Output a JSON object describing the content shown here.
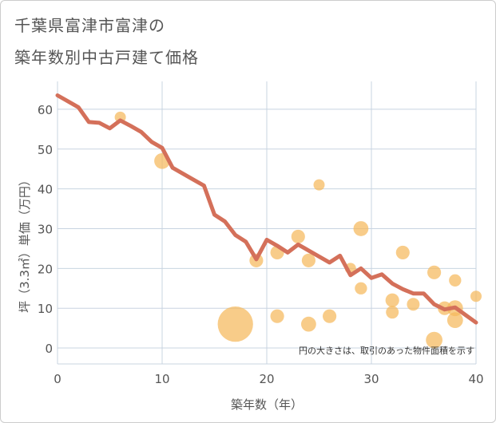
{
  "header": {
    "title_line1": "千葉県富津市富津の",
    "title_line2": "築年数別中古戸建て価格"
  },
  "chart_data": {
    "type": "scatter+line",
    "xlabel": "築年数（年）",
    "ylabel": "坪（3.3㎡）単価（万円）",
    "xlim": [
      0,
      40
    ],
    "ylim": [
      -4,
      67
    ],
    "xticks": [
      0,
      10,
      20,
      30,
      40
    ],
    "yticks": [
      0,
      10,
      20,
      30,
      40,
      50,
      60
    ],
    "grid": true,
    "note": "円の大きさは、取引のあった物件面積を示す",
    "colors": {
      "line": "#d4705a",
      "bubble": "#f5b95c",
      "grid": "#c8d4e0"
    },
    "scatter": [
      {
        "x": 6,
        "y": 58,
        "size": 1
      },
      {
        "x": 10,
        "y": 47,
        "size": 2
      },
      {
        "x": 17,
        "y": 6,
        "size": 10
      },
      {
        "x": 19,
        "y": 22,
        "size": 1.5
      },
      {
        "x": 21,
        "y": 24,
        "size": 1.5
      },
      {
        "x": 21,
        "y": 8,
        "size": 1.5
      },
      {
        "x": 23,
        "y": 28,
        "size": 1.5
      },
      {
        "x": 24,
        "y": 22,
        "size": 1.5
      },
      {
        "x": 24,
        "y": 6,
        "size": 1.8
      },
      {
        "x": 25,
        "y": 41,
        "size": 1
      },
      {
        "x": 26,
        "y": 8,
        "size": 1.5
      },
      {
        "x": 28,
        "y": 20,
        "size": 1
      },
      {
        "x": 29,
        "y": 30,
        "size": 1.8
      },
      {
        "x": 29,
        "y": 15,
        "size": 1.2
      },
      {
        "x": 32,
        "y": 12,
        "size": 1.5
      },
      {
        "x": 32,
        "y": 9,
        "size": 1.3
      },
      {
        "x": 33,
        "y": 24,
        "size": 1.5
      },
      {
        "x": 34,
        "y": 11,
        "size": 1.3
      },
      {
        "x": 36,
        "y": 19,
        "size": 1.5
      },
      {
        "x": 36,
        "y": 2,
        "size": 2.2
      },
      {
        "x": 37,
        "y": 10,
        "size": 1.5
      },
      {
        "x": 38,
        "y": 17,
        "size": 1.2
      },
      {
        "x": 38,
        "y": 10,
        "size": 2
      },
      {
        "x": 38,
        "y": 7,
        "size": 2
      },
      {
        "x": 40,
        "y": 13,
        "size": 1
      }
    ],
    "line": {
      "x": [
        0,
        1,
        2,
        3,
        4,
        5,
        6,
        7,
        8,
        9,
        10,
        11,
        12,
        13,
        14,
        15,
        16,
        17,
        18,
        19,
        20,
        21,
        22,
        23,
        24,
        25,
        26,
        27,
        28,
        29,
        30,
        31,
        32,
        33,
        34,
        35,
        36,
        37,
        38,
        39,
        40
      ],
      "y": [
        63.5,
        62,
        60.5,
        56.8,
        56.6,
        55.2,
        57.2,
        55.8,
        54.3,
        51.8,
        50.3,
        45.3,
        43.8,
        42.3,
        40.8,
        33.5,
        31.8,
        28.4,
        26.7,
        22.3,
        27.2,
        25.7,
        24.0,
        26.0,
        24.5,
        23.0,
        21.5,
        23.2,
        18.3,
        20.0,
        17.6,
        18.5,
        16.2,
        14.8,
        13.7,
        13.7,
        11.0,
        9.7,
        10.2,
        8.3,
        6.4
      ]
    }
  }
}
